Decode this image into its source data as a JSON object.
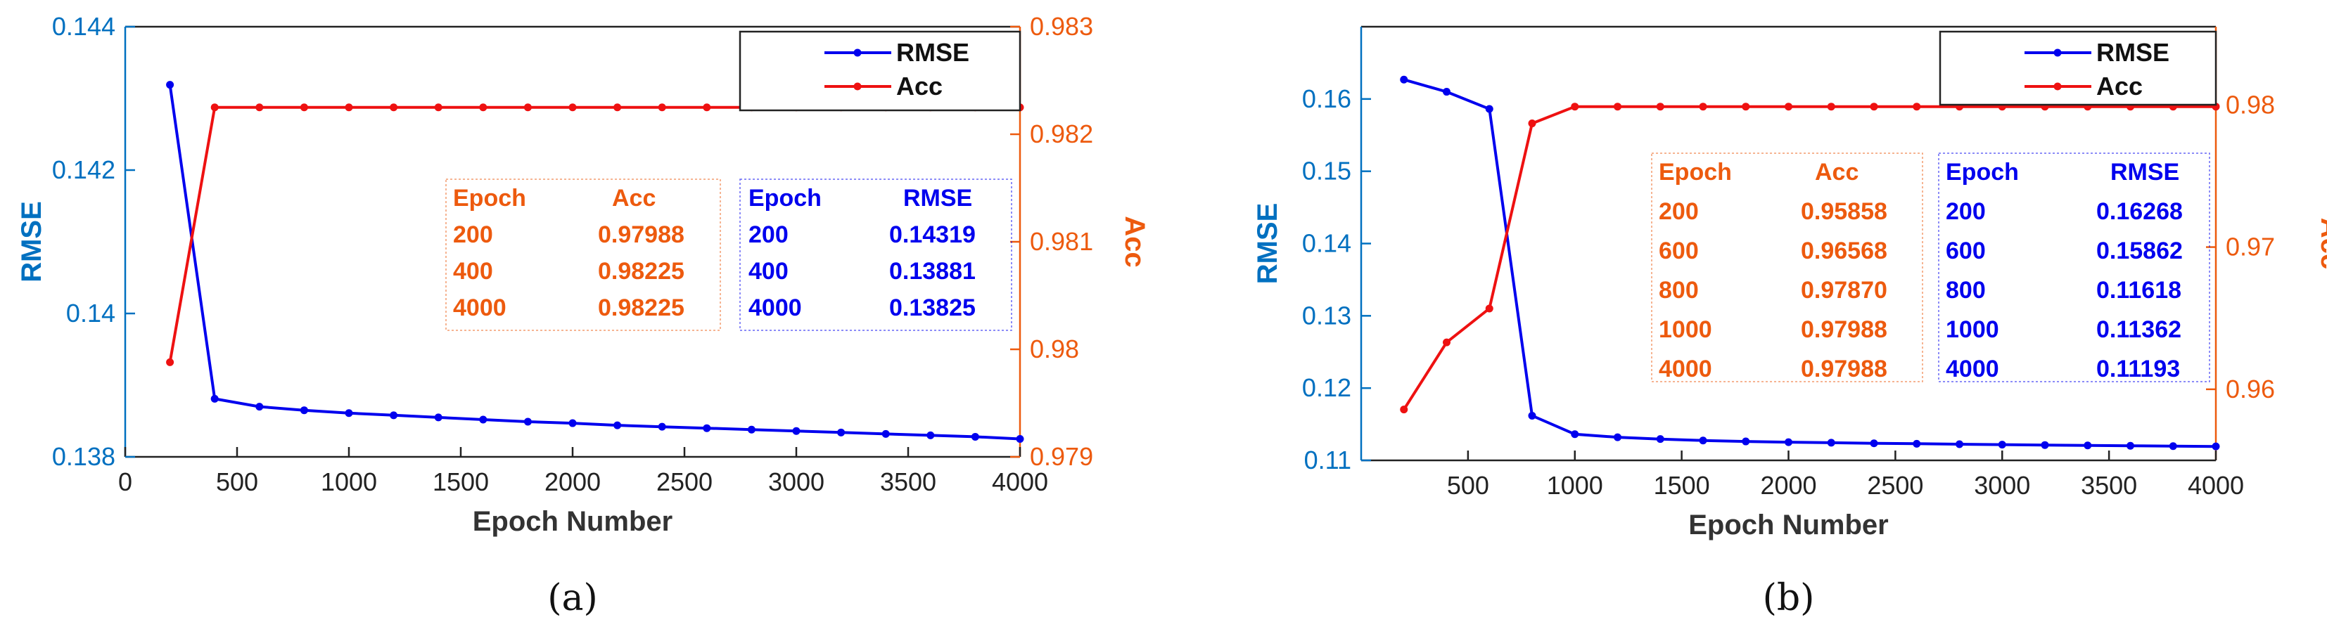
{
  "chart_data": [
    {
      "type": "line",
      "caption": "(a)",
      "xlabel": "Epoch Number",
      "ylabel_left": "RMSE",
      "ylabel_right": "Acc",
      "xlim": [
        0,
        4000
      ],
      "ylim_left": [
        0.138,
        0.144
      ],
      "ylim_right": [
        0.979,
        0.983
      ],
      "x_ticks": [
        "0",
        "500",
        "1000",
        "1500",
        "2000",
        "2500",
        "3000",
        "3500",
        "4000"
      ],
      "y_ticks_left": [
        "0.138",
        "0.14",
        "0.142",
        "0.144"
      ],
      "y_ticks_right": [
        "0.979",
        "0.98",
        "0.981",
        "0.982",
        "0.983"
      ],
      "legend_position": "top-right",
      "legend": [
        "RMSE",
        "Acc"
      ],
      "colors": {
        "rmse": "#0000ee",
        "acc": "#ee1111",
        "left_axis": "#0070c0",
        "right_axis": "#ed5a0e"
      },
      "series": [
        {
          "name": "RMSE",
          "axis": "left",
          "x": [
            200,
            400,
            600,
            800,
            1000,
            1200,
            1400,
            1600,
            1800,
            2000,
            2200,
            2400,
            2600,
            2800,
            3000,
            3200,
            3400,
            3600,
            3800,
            4000
          ],
          "values": [
            0.14319,
            0.13881,
            0.1387,
            0.13865,
            0.13861,
            0.13858,
            0.13855,
            0.13852,
            0.13849,
            0.13847,
            0.13844,
            0.13842,
            0.1384,
            0.13838,
            0.13836,
            0.13834,
            0.13832,
            0.1383,
            0.13828,
            0.13825
          ]
        },
        {
          "name": "Acc",
          "axis": "right",
          "x": [
            200,
            400,
            600,
            800,
            1000,
            1200,
            1400,
            1600,
            1800,
            2000,
            2200,
            2400,
            2600,
            2800,
            3000,
            3200,
            3400,
            3600,
            3800,
            4000
          ],
          "values": [
            0.97988,
            0.98225,
            0.98225,
            0.98225,
            0.98225,
            0.98225,
            0.98225,
            0.98225,
            0.98225,
            0.98225,
            0.98225,
            0.98225,
            0.98225,
            0.98225,
            0.98225,
            0.98225,
            0.98225,
            0.98225,
            0.98225,
            0.98225
          ]
        }
      ],
      "tables": [
        {
          "color": "#ed5a0e",
          "headers": [
            "Epoch",
            "Acc"
          ],
          "rows": [
            [
              "200",
              "0.97988"
            ],
            [
              "400",
              "0.98225"
            ],
            [
              "4000",
              "0.98225"
            ]
          ]
        },
        {
          "color": "#0000ee",
          "headers": [
            "Epoch",
            "RMSE"
          ],
          "rows": [
            [
              "200",
              "0.14319"
            ],
            [
              "400",
              "0.13881"
            ],
            [
              "4000",
              "0.13825"
            ]
          ]
        }
      ]
    },
    {
      "type": "line",
      "caption": "(b)",
      "xlabel": "Epoch Number",
      "ylabel_left": "RMSE",
      "ylabel_right": "Acc",
      "xlim": [
        0,
        4000
      ],
      "ylim_left": [
        0.11,
        0.17
      ],
      "ylim_right": [
        0.955,
        0.9855
      ],
      "x_ticks": [
        "500",
        "1000",
        "1500",
        "2000",
        "2500",
        "3000",
        "3500",
        "4000"
      ],
      "y_ticks_left": [
        "0.11",
        "0.12",
        "0.13",
        "0.14",
        "0.15",
        "0.16"
      ],
      "y_ticks_right": [
        "0.96",
        "0.97",
        "0.98"
      ],
      "legend_position": "top-right",
      "legend": [
        "RMSE",
        "Acc"
      ],
      "colors": {
        "rmse": "#0000ee",
        "acc": "#ee1111",
        "left_axis": "#0070c0",
        "right_axis": "#ed5a0e"
      },
      "series": [
        {
          "name": "RMSE",
          "axis": "left",
          "x": [
            200,
            400,
            600,
            800,
            1000,
            1200,
            1400,
            1600,
            1800,
            2000,
            2200,
            2400,
            2600,
            2800,
            3000,
            3200,
            3400,
            3600,
            3800,
            4000
          ],
          "values": [
            0.16268,
            0.161,
            0.15862,
            0.11618,
            0.11362,
            0.1132,
            0.11295,
            0.11275,
            0.11262,
            0.11252,
            0.11244,
            0.11236,
            0.1123,
            0.11224,
            0.11218,
            0.11212,
            0.11207,
            0.11202,
            0.11197,
            0.11193
          ]
        },
        {
          "name": "Acc",
          "axis": "right",
          "x": [
            200,
            400,
            600,
            800,
            1000,
            1200,
            1400,
            1600,
            1800,
            2000,
            2200,
            2400,
            2600,
            2800,
            3000,
            3200,
            3400,
            3600,
            3800,
            4000
          ],
          "values": [
            0.95858,
            0.9633,
            0.96568,
            0.9787,
            0.97988,
            0.97988,
            0.97988,
            0.97988,
            0.97988,
            0.97988,
            0.97988,
            0.97988,
            0.97988,
            0.97988,
            0.97988,
            0.97988,
            0.97988,
            0.97988,
            0.97988,
            0.97988
          ]
        }
      ],
      "tables": [
        {
          "color": "#ed5a0e",
          "headers": [
            "Epoch",
            "Acc"
          ],
          "rows": [
            [
              "200",
              "0.95858"
            ],
            [
              "600",
              "0.96568"
            ],
            [
              "800",
              "0.97870"
            ],
            [
              "1000",
              "0.97988"
            ],
            [
              "4000",
              "0.97988"
            ]
          ]
        },
        {
          "color": "#0000ee",
          "headers": [
            "Epoch",
            "RMSE"
          ],
          "rows": [
            [
              "200",
              "0.16268"
            ],
            [
              "600",
              "0.15862"
            ],
            [
              "800",
              "0.11618"
            ],
            [
              "1000",
              "0.11362"
            ],
            [
              "4000",
              "0.11193"
            ]
          ]
        }
      ]
    }
  ]
}
